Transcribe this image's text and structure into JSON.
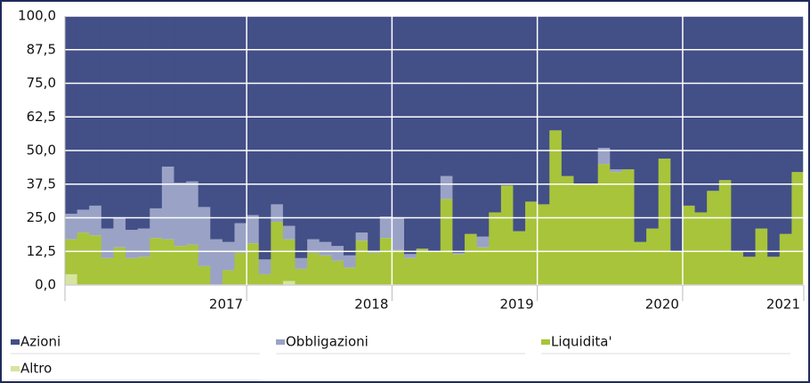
{
  "chart_data": {
    "type": "bar",
    "stacked": true,
    "grid": true,
    "legend": "bottom",
    "categories": [
      null,
      null,
      null,
      null,
      null,
      null,
      null,
      null,
      null,
      null,
      null,
      null,
      null,
      null,
      "2017",
      null,
      null,
      null,
      null,
      null,
      null,
      null,
      null,
      null,
      null,
      null,
      "2018",
      null,
      null,
      null,
      null,
      null,
      null,
      null,
      null,
      null,
      null,
      null,
      "2019",
      null,
      null,
      null,
      null,
      null,
      null,
      null,
      null,
      null,
      null,
      null,
      "2020",
      null,
      null,
      null,
      null,
      null,
      null,
      null,
      null,
      null,
      "2021"
    ],
    "ylim": [
      0,
      100
    ],
    "yticks": [
      {
        "value": 0,
        "label": "0,0"
      },
      {
        "value": 12.5,
        "label": "12,5"
      },
      {
        "value": 25,
        "label": "25,0"
      },
      {
        "value": 37.5,
        "label": "37,5"
      },
      {
        "value": 50,
        "label": "50,0"
      },
      {
        "value": 62.5,
        "label": "62,5"
      },
      {
        "value": 75,
        "label": "75,0"
      },
      {
        "value": 87.5,
        "label": "87,5"
      },
      {
        "value": 100,
        "label": "100,0"
      }
    ],
    "series": [
      {
        "name": "Azioni",
        "color": "#434f87",
        "values": [
          73.5,
          72,
          70.5,
          79,
          75,
          79.5,
          79,
          71.5,
          56,
          62,
          61.5,
          71,
          83,
          84,
          77,
          74,
          90.5,
          70,
          78,
          90,
          83,
          84,
          85.5,
          89,
          80.5,
          87.5,
          74.5,
          75,
          88.5,
          86.5,
          87.5,
          59.5,
          88,
          81,
          82,
          73,
          63,
          80,
          69,
          70,
          42.5,
          59.5,
          62.5,
          62.5,
          49,
          57,
          57,
          84,
          79,
          53,
          87.5,
          70.5,
          73,
          65,
          61,
          87.5,
          89.5,
          79,
          89.5,
          81,
          58
        ]
      },
      {
        "name": "Obbligazioni",
        "color": "#9aa3c6",
        "values": [
          9.5,
          8.5,
          11,
          11,
          11,
          10.5,
          10.5,
          11,
          27,
          23.5,
          23.5,
          22,
          17,
          10.5,
          11,
          10.5,
          5.5,
          6.5,
          5,
          4,
          5,
          5,
          5.5,
          4.5,
          3,
          0.5,
          8,
          12,
          1.5,
          0,
          0,
          8.5,
          0.5,
          0,
          4,
          0,
          0,
          0,
          0,
          0,
          0,
          0,
          0,
          0,
          6,
          1,
          0,
          0,
          0,
          0,
          0,
          0,
          0,
          0,
          0,
          0,
          0,
          0,
          0,
          0,
          0
        ]
      },
      {
        "name": "Liquidita'",
        "color": "#a8c43a",
        "values": [
          13,
          19.5,
          18.5,
          10,
          14,
          10,
          10.5,
          17.5,
          17,
          14.5,
          15,
          7,
          0,
          5.5,
          12,
          15.5,
          4,
          23.5,
          15.5,
          6,
          12,
          11,
          9,
          6.5,
          16.5,
          12,
          17.5,
          13,
          10,
          13.5,
          12.5,
          32,
          11.5,
          19,
          14,
          27,
          37,
          20,
          31,
          30,
          57.5,
          40.5,
          37.5,
          37.5,
          45,
          42,
          43,
          16,
          21,
          47,
          12.5,
          29.5,
          27,
          35,
          39,
          12.5,
          10.5,
          21,
          10.5,
          19,
          42
        ]
      },
      {
        "name": "Altro",
        "color": "#d6e4a0",
        "values": [
          4,
          0,
          0,
          0,
          0,
          0,
          0,
          0,
          0,
          0,
          0,
          0,
          0,
          0,
          0,
          0,
          0,
          0,
          1.5,
          0,
          0,
          0,
          0,
          0,
          0,
          0,
          0,
          0,
          0,
          0,
          0,
          0,
          0,
          0,
          0,
          0,
          0,
          0,
          0,
          0,
          0,
          0,
          0,
          0,
          0,
          0,
          0,
          0,
          0,
          0,
          0,
          0,
          0,
          0,
          0,
          0,
          0,
          0,
          0,
          0,
          0
        ]
      }
    ]
  }
}
